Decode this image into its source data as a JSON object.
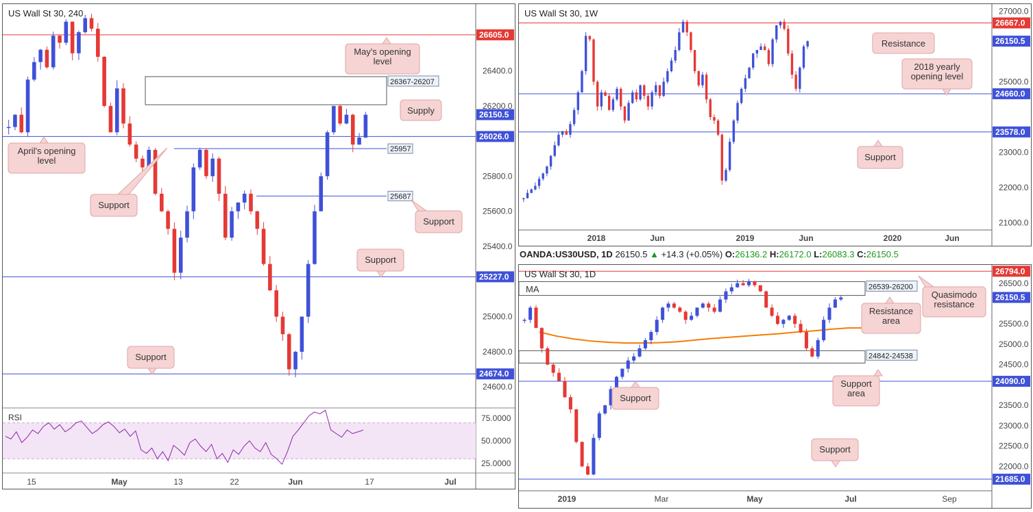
{
  "colors": {
    "bull": "#3f51d8",
    "bear": "#e53935",
    "support_line": "#3f51d8",
    "resistance_line": "#e53935",
    "ma": "#f57c00",
    "rsi": "#8e24aa",
    "rsi_band": "#f3e5f5",
    "callout_bg": "#f6d4d4",
    "callout_border": "#e2a3a3",
    "current_price_bg": "#3f51d8",
    "red_price_bg": "#e53935"
  },
  "panels": {
    "h4": {
      "title": "US Wall St 30, 240",
      "rsi_label": "RSI",
      "rsi_ticks": [
        "75.0000",
        "50.0000",
        "25.0000"
      ]
    },
    "weekly": {
      "title": "US Wall St 30, 1W"
    },
    "daily": {
      "title": "US Wall St 30, 1D",
      "ma_label": "MA"
    }
  },
  "infobar": {
    "symbol": "OANDA:US30USD, 1D",
    "price": "26150.5",
    "arrow": "▲",
    "change": "+14.3 (+0.05%)",
    "o_label": "O:",
    "o": "26136.2",
    "h_label": "H:",
    "h": "26172.0",
    "l_label": "L:",
    "l": "26083.3",
    "c_label": "C:",
    "c": "26150.5"
  },
  "chart_data": [
    {
      "type": "candlestick",
      "title": "US Wall St 30, 240",
      "ylim": [
        24480,
        26780
      ],
      "y_ticks": [
        "26400.0",
        "26200.0",
        "25800.0",
        "25600.0",
        "25400.0",
        "25000.0",
        "24800.0",
        "24600.0"
      ],
      "x_ticks": [
        "15",
        "May",
        "13",
        "22",
        "Jun",
        "17",
        "Jul"
      ],
      "price_labels": [
        {
          "value": 26605,
          "text": "26605.0",
          "kind": "resistance"
        },
        {
          "value": 26150.5,
          "text": "26150.5",
          "kind": "current"
        },
        {
          "value": 26026,
          "text": "26026.0",
          "kind": "support"
        },
        {
          "value": 25227,
          "text": "25227.0",
          "kind": "support"
        },
        {
          "value": 24674,
          "text": "24674.0",
          "kind": "support"
        }
      ],
      "levels": [
        {
          "value": 26605,
          "kind": "resistance"
        },
        {
          "value": 26026,
          "kind": "support"
        },
        {
          "value": 25227,
          "kind": "support"
        },
        {
          "value": 24674,
          "kind": "support"
        },
        {
          "value": 25957,
          "kind": "support",
          "label": "25957"
        },
        {
          "value": 25687,
          "kind": "support",
          "label": "25687"
        }
      ],
      "zones": [
        {
          "from": 26207,
          "to": 26367,
          "label": "26367-26207"
        }
      ],
      "callouts": [
        "May's opening level",
        "Supply",
        "April's opening level",
        "Support",
        "Support",
        "Support",
        "Support"
      ],
      "rsi": {
        "ylim": [
          15,
          85
        ],
        "upper": 70,
        "lower": 30,
        "values": [
          55,
          52,
          60,
          48,
          54,
          62,
          58,
          66,
          70,
          63,
          68,
          60,
          64,
          70,
          72,
          65,
          58,
          62,
          68,
          71,
          66,
          59,
          63,
          55,
          61,
          40,
          36,
          42,
          30,
          38,
          28,
          45,
          40,
          34,
          48,
          52,
          44,
          38,
          46,
          30,
          36,
          26,
          40,
          35,
          44,
          50,
          42,
          38,
          48,
          35,
          30,
          24,
          38,
          55,
          62,
          70,
          78,
          82,
          80,
          84,
          62,
          58,
          54,
          62,
          58,
          60,
          62
        ]
      },
      "series": [
        26080,
        26150,
        26050,
        26350,
        26450,
        26520,
        26420,
        26600,
        26560,
        26680,
        26500,
        26620,
        26700,
        26640,
        26480,
        26200,
        26050,
        26300,
        26100,
        25980,
        25900,
        25850,
        25950,
        25700,
        25600,
        25500,
        25250,
        25450,
        25600,
        25850,
        25950,
        25800,
        25900,
        25700,
        25450,
        25600,
        25650,
        25700,
        25600,
        25500,
        25300,
        25150,
        25000,
        24900,
        24700,
        24800,
        25000,
        25300,
        25600,
        25800,
        26050,
        26200,
        26100,
        26150,
        25980,
        26020,
        26150
      ]
    },
    {
      "type": "candlestick",
      "title": "US Wall St 30, 1W",
      "ylim": [
        20800,
        27200
      ],
      "y_ticks": [
        "27000.0",
        "25000.0",
        "23000.0",
        "22000.0",
        "21000.0"
      ],
      "x_ticks": [
        "2018",
        "Jun",
        "2019",
        "Jun",
        "2020",
        "Jun"
      ],
      "price_labels": [
        {
          "value": 26667,
          "text": "26667.0",
          "kind": "resistance"
        },
        {
          "value": 26150.5,
          "text": "26150.5",
          "kind": "current"
        },
        {
          "value": 24660,
          "text": "24660.0",
          "kind": "support"
        },
        {
          "value": 23578,
          "text": "23578.0",
          "kind": "support"
        }
      ],
      "levels": [
        {
          "value": 26667,
          "kind": "resistance"
        },
        {
          "value": 24660,
          "kind": "support"
        },
        {
          "value": 23578,
          "kind": "support"
        }
      ],
      "callouts": [
        "Resistance",
        "2018 yearly opening level",
        "Support"
      ],
      "series": [
        21700,
        21850,
        21950,
        22050,
        22250,
        22400,
        22600,
        22900,
        23200,
        23500,
        23600,
        23500,
        23800,
        24200,
        24700,
        25300,
        26300,
        26200,
        25000,
        24300,
        24700,
        24600,
        24200,
        24500,
        24800,
        24300,
        23900,
        24400,
        24700,
        24500,
        24900,
        24600,
        24300,
        24700,
        24900,
        24600,
        25000,
        25300,
        25600,
        25900,
        26400,
        26700,
        26400,
        25900,
        25300,
        24900,
        25200,
        24500,
        24000,
        23900,
        23500,
        22200,
        22500,
        23300,
        23900,
        24400,
        24800,
        25100,
        25400,
        25800,
        25900,
        26000,
        25900,
        25500,
        26200,
        26600,
        26700,
        26500,
        25800,
        25200,
        24800,
        25400,
        26000,
        26150
      ]
    },
    {
      "type": "candlestick",
      "title": "US Wall St 30, 1D",
      "ylim": [
        21400,
        26950
      ],
      "y_ticks": [
        "26500.0",
        "25500.0",
        "25000.0",
        "24500.0",
        "23500.0",
        "23000.0",
        "22500.0",
        "22000.0"
      ],
      "x_ticks": [
        "2019",
        "Mar",
        "May",
        "Jul",
        "Sep"
      ],
      "price_labels": [
        {
          "value": 26794,
          "text": "26794.0",
          "kind": "resistance"
        },
        {
          "value": 26150.5,
          "text": "26150.5",
          "kind": "current"
        },
        {
          "value": 24090,
          "text": "24090.0",
          "kind": "support"
        },
        {
          "value": 21685,
          "text": "21685.0",
          "kind": "support"
        }
      ],
      "levels": [
        {
          "value": 26794,
          "kind": "resistance"
        },
        {
          "value": 24090,
          "kind": "support"
        },
        {
          "value": 21685,
          "kind": "support"
        }
      ],
      "zones": [
        {
          "from": 26200,
          "to": 26539,
          "label": "26539-26200"
        },
        {
          "from": 24538,
          "to": 24842,
          "label": "24842-24538"
        }
      ],
      "callouts": [
        "Quasimodo resistance",
        "Resistance area",
        "Support area",
        "Support",
        "Support"
      ],
      "ma": [
        25300,
        25200,
        25130,
        25080,
        25050,
        25030,
        25030,
        25040,
        25060,
        25100,
        25140,
        25170,
        25200,
        25230,
        25260,
        25300,
        25330,
        25370,
        25400,
        25400
      ],
      "series": [
        25600,
        25900,
        25400,
        24900,
        24500,
        24300,
        24100,
        23700,
        23400,
        22600,
        22000,
        21800,
        22700,
        23300,
        23500,
        23900,
        24200,
        24400,
        24600,
        24700,
        24900,
        25100,
        25300,
        25600,
        25900,
        26000,
        25900,
        25800,
        25600,
        25700,
        25900,
        26000,
        25900,
        25800,
        26100,
        26300,
        26400,
        26500,
        26450,
        26550,
        26450,
        26300,
        25900,
        25700,
        25500,
        25600,
        25700,
        25500,
        25300,
        24900,
        24700,
        25100,
        25600,
        25900,
        26100,
        26150
      ]
    }
  ]
}
